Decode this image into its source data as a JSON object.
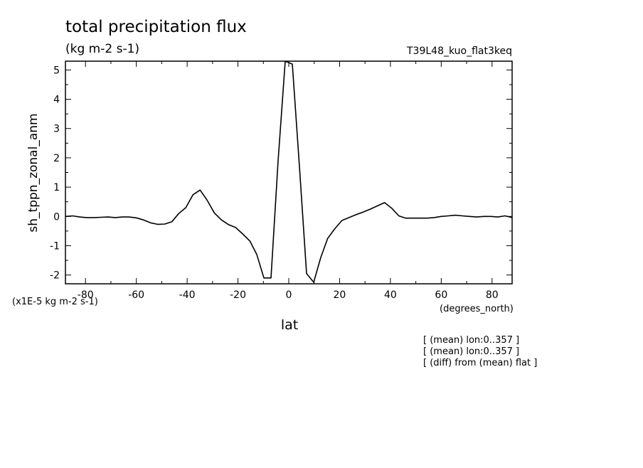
{
  "chart_data": {
    "type": "line",
    "title": "total precipitation flux",
    "subtitle": "(kg m-2 s-1)",
    "run_id": "T39L48_kuo_flat3keq",
    "xlabel": "lat",
    "x_units": "(degrees_north)",
    "ylabel": "sh_tppn_zonal_anm",
    "y_scale_note": "(x1E-5 kg m-2 s-1)",
    "xlim": [
      -87.9,
      87.9
    ],
    "ylim": [
      -2.3,
      5.3
    ],
    "x_ticks": [
      -80,
      -60,
      -40,
      -20,
      0,
      20,
      40,
      60,
      80
    ],
    "x_tick_labels": [
      "-80",
      "-60",
      "-40",
      "-20",
      "0",
      "20",
      "40",
      "60",
      "80"
    ],
    "y_ticks": [
      -2,
      -1,
      0,
      1,
      2,
      3,
      4,
      5
    ],
    "y_tick_labels": [
      "-2",
      "-1",
      "0",
      "1",
      "2",
      "3",
      "4",
      "5"
    ],
    "grid": false,
    "series": [
      {
        "color": "#000000",
        "x": [
          -87.9,
          -85.1,
          -82.3,
          -79.5,
          -76.7,
          -73.9,
          -71.1,
          -68.3,
          -65.6,
          -62.8,
          -60.0,
          -57.2,
          -54.4,
          -51.6,
          -48.8,
          -46.0,
          -43.3,
          -40.5,
          -37.7,
          -34.9,
          -32.1,
          -29.3,
          -26.5,
          -23.7,
          -20.9,
          -18.1,
          -15.3,
          -12.6,
          -9.8,
          -7.0,
          -4.2,
          -1.4,
          1.4,
          4.2,
          7.0,
          9.8,
          12.6,
          15.3,
          18.1,
          20.9,
          23.7,
          26.5,
          29.3,
          32.1,
          34.9,
          37.7,
          40.5,
          43.3,
          46.0,
          48.8,
          51.6,
          54.4,
          57.2,
          60.0,
          62.8,
          65.6,
          68.3,
          71.1,
          73.9,
          76.7,
          79.5,
          82.3,
          85.1,
          87.9
        ],
        "y": [
          0.0,
          0.02,
          -0.02,
          -0.04,
          -0.04,
          -0.03,
          -0.02,
          -0.04,
          -0.02,
          -0.02,
          -0.05,
          -0.12,
          -0.22,
          -0.27,
          -0.26,
          -0.18,
          0.1,
          0.3,
          0.74,
          0.9,
          0.55,
          0.12,
          -0.12,
          -0.28,
          -0.38,
          -0.6,
          -0.84,
          -1.3,
          -2.1,
          -2.1,
          1.9,
          5.3,
          5.2,
          1.7,
          -1.95,
          -2.25,
          -1.4,
          -0.75,
          -0.42,
          -0.14,
          -0.04,
          0.06,
          0.15,
          0.25,
          0.36,
          0.47,
          0.28,
          0.02,
          -0.06,
          -0.06,
          -0.06,
          -0.06,
          -0.04,
          0.0,
          0.02,
          0.04,
          0.02,
          0.0,
          -0.02,
          0.0,
          0.0,
          -0.02,
          0.02,
          -0.04
        ]
      }
    ]
  },
  "notes": [
    "[ (mean) lon:0..357 ]",
    "[ (mean) lon:0..357 ]",
    "[ (diff) from (mean) flat ]"
  ]
}
